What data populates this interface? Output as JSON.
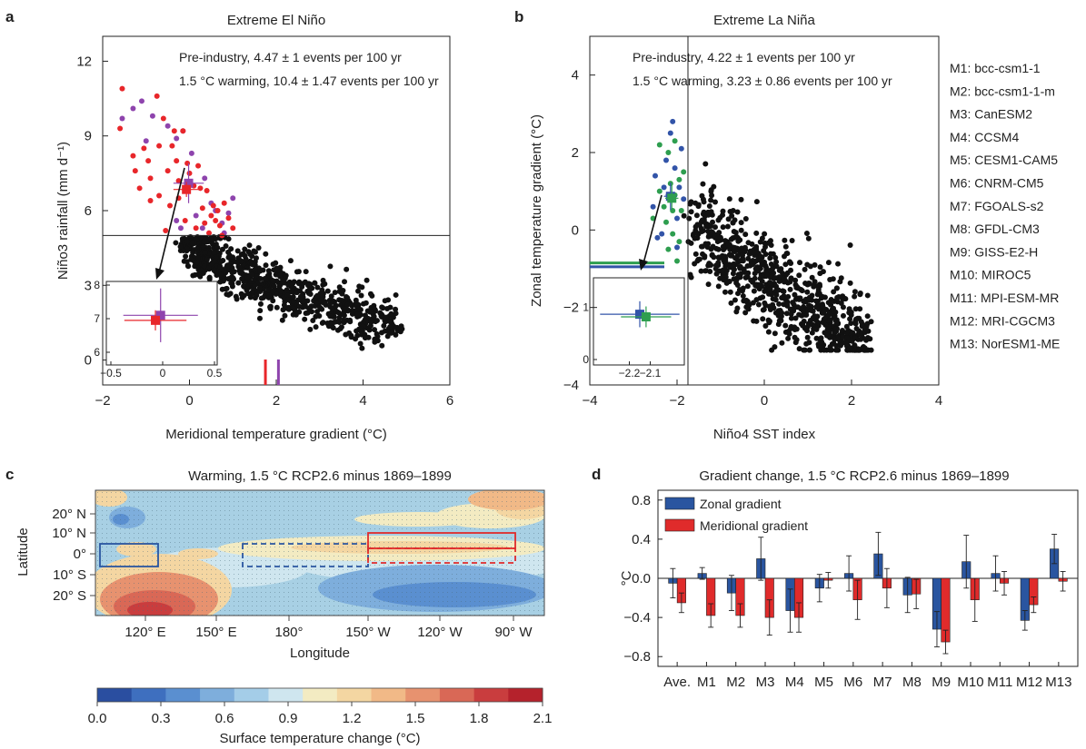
{
  "colors": {
    "preindustry_a": "#8e44ad",
    "warming_a": "#e8262a",
    "preindustry_b": "#2e9e4f",
    "warming_b": "#3254a8",
    "black": "#111111",
    "zonal_bar": "#2a55a0",
    "meridional_bar": "#e02b2b"
  },
  "panel_a": {
    "label": "a",
    "chart_data": {
      "type": "scatter",
      "title": "Extreme El Niño",
      "xlabel": "Meridional temperature gradient (°C)",
      "ylabel": "Niño3 rainfall (mm d⁻¹)",
      "xlim": [
        -2,
        6
      ],
      "ylim": [
        -1,
        13
      ],
      "xticks": [
        "−2",
        "0",
        "2",
        "4",
        "6"
      ],
      "yticks": [
        "0",
        "3",
        "6",
        "9",
        "12"
      ],
      "threshold_y": 5,
      "annotations": [
        {
          "text": "Pre-industry, 4.47 ± 1 events per 100 yr",
          "color": "#8e44ad"
        },
        {
          "text": "1.5 °C warming, 10.4 ± 1.47 events per 100 yr",
          "color": "#e8262a"
        }
      ],
      "markers_x": [
        {
          "x": 1.75,
          "color": "#e8262a"
        },
        {
          "x": 2.05,
          "color": "#8e44ad"
        }
      ],
      "extreme_preindustry": [
        [
          -1.55,
          9.7
        ],
        [
          -1.3,
          10.1
        ],
        [
          -1.1,
          10.4
        ],
        [
          -1.0,
          8.8
        ],
        [
          -0.85,
          9.8
        ],
        [
          -0.5,
          9.4
        ],
        [
          -0.3,
          8.9
        ],
        [
          -0.15,
          9.2
        ],
        [
          0.05,
          8.3
        ],
        [
          0.35,
          7.3
        ],
        [
          0.5,
          6.3
        ],
        [
          0.6,
          6.0
        ],
        [
          0.75,
          5.5
        ],
        [
          0.8,
          5.1
        ],
        [
          0.9,
          5.9
        ],
        [
          -0.3,
          5.6
        ],
        [
          0.3,
          5.3
        ],
        [
          1.0,
          6.5
        ],
        [
          0.15,
          5.8
        ],
        [
          -0.2,
          5.3
        ]
      ],
      "extreme_warming": [
        [
          -1.55,
          10.9
        ],
        [
          -1.6,
          9.3
        ],
        [
          -1.3,
          8.2
        ],
        [
          -1.25,
          7.6
        ],
        [
          -1.05,
          8.5
        ],
        [
          -0.95,
          8.0
        ],
        [
          -0.9,
          7.3
        ],
        [
          -0.75,
          10.6
        ],
        [
          -0.7,
          8.6
        ],
        [
          -0.6,
          9.7
        ],
        [
          -0.5,
          7.6
        ],
        [
          -0.4,
          8.6
        ],
        [
          -0.35,
          9.2
        ],
        [
          -0.3,
          8.0
        ],
        [
          -0.25,
          7.2
        ],
        [
          -0.15,
          9.2
        ],
        [
          -0.05,
          7.9
        ],
        [
          0.0,
          7.5
        ],
        [
          0.1,
          7.0
        ],
        [
          0.2,
          7.8
        ],
        [
          0.25,
          6.9
        ],
        [
          0.3,
          6.1
        ],
        [
          0.4,
          6.8
        ],
        [
          0.5,
          5.8
        ],
        [
          0.55,
          6.2
        ],
        [
          0.6,
          5.6
        ],
        [
          0.65,
          6.0
        ],
        [
          0.7,
          5.4
        ],
        [
          0.8,
          6.3
        ],
        [
          0.9,
          5.7
        ],
        [
          0.35,
          5.5
        ],
        [
          0.15,
          5.3
        ],
        [
          -0.1,
          5.6
        ],
        [
          -0.25,
          6.5
        ],
        [
          -0.45,
          6.2
        ],
        [
          -0.7,
          6.6
        ],
        [
          -0.9,
          6.4
        ],
        [
          -1.15,
          6.9
        ],
        [
          -0.55,
          5.2
        ],
        [
          0.45,
          5.1
        ],
        [
          1.0,
          5.3
        ],
        [
          0.75,
          5.0
        ]
      ],
      "inset": {
        "xlim": [
          -0.5,
          0.5
        ],
        "ylim": [
          6,
          8
        ],
        "xticks": [
          "−0.5",
          "0",
          "0.5"
        ],
        "yticks": [
          "6",
          "7",
          "8"
        ],
        "series": [
          {
            "name": "Pre-industry",
            "x": -0.02,
            "y": 7.1,
            "xerr": 0.36,
            "yerr": 0.8,
            "color": "#8e44ad"
          },
          {
            "name": "1.5 °C warming",
            "x": -0.07,
            "y": 6.95,
            "xerr": 0.3,
            "yerr": 0.3,
            "color": "#e8262a"
          }
        ]
      }
    }
  },
  "panel_b": {
    "label": "b",
    "chart_data": {
      "type": "scatter",
      "title": "Extreme La Niña",
      "xlabel": "Niño4 SST index",
      "ylabel": "Zonal temperature gradient (°C)",
      "xlim": [
        -4,
        4
      ],
      "ylim": [
        -4,
        5
      ],
      "xticks": [
        "−4",
        "−2",
        "0",
        "2",
        "4"
      ],
      "yticks": [
        "−4",
        "−2",
        "0",
        "2",
        "4"
      ],
      "threshold_x": -1.75,
      "annotations": [
        {
          "text": "Pre-industry, 4.22 ± 1 events per 100 yr",
          "color": "#2e9e4f"
        },
        {
          "text": "1.5 °C warming, 3.23 ± 0.86 events per 100 yr",
          "color": "#3254a8"
        }
      ],
      "markers_y": [
        {
          "y": -0.85,
          "color": "#2e9e4f"
        },
        {
          "y": -0.95,
          "color": "#3254a8"
        }
      ],
      "extreme_preindustry": [
        [
          -2.55,
          0.3
        ],
        [
          -2.4,
          2.2
        ],
        [
          -2.2,
          2.0
        ],
        [
          -2.15,
          1.2
        ],
        [
          -2.05,
          2.3
        ],
        [
          -1.95,
          1.3
        ],
        [
          -2.3,
          0.6
        ],
        [
          -2.1,
          -0.1
        ],
        [
          -1.95,
          -0.3
        ],
        [
          -2.2,
          -0.5
        ],
        [
          -2.05,
          0.9
        ],
        [
          -1.9,
          0.5
        ],
        [
          -2.4,
          1.0
        ],
        [
          -2.25,
          0.2
        ],
        [
          -2.0,
          -0.8
        ],
        [
          -1.85,
          1.5
        ],
        [
          -2.1,
          0.5
        ]
      ],
      "extreme_warming": [
        [
          -2.55,
          0.6
        ],
        [
          -2.5,
          1.4
        ],
        [
          -2.35,
          -0.1
        ],
        [
          -2.25,
          1.8
        ],
        [
          -2.2,
          0.9
        ],
        [
          -2.15,
          2.5
        ],
        [
          -2.1,
          2.8
        ],
        [
          -2.05,
          1.6
        ],
        [
          -2.0,
          0.3
        ],
        [
          -1.95,
          1.1
        ],
        [
          -1.9,
          2.1
        ],
        [
          -2.3,
          1.1
        ],
        [
          -2.45,
          -0.2
        ],
        [
          -2.0,
          -0.45
        ],
        [
          -1.85,
          0.8
        ]
      ],
      "legend": [
        "M1: bcc-csm1-1",
        "M2: bcc-csm1-1-m",
        "M3: CanESM2",
        "M4: CCSM4",
        "M5: CESM1-CAM5",
        "M6: CNRM-CM5",
        "M7: FGOALS-s2",
        "M8: GFDL-CM3",
        "M9: GISS-E2-H",
        "M10: MIROC5",
        "M11: MPI-ESM-MR",
        "M12: MRI-CGCM3",
        "M13: NorESM1-ME"
      ],
      "inset": {
        "xlim": [
          -2.35,
          -1.95
        ],
        "ylim": [
          0,
          1.5
        ],
        "xticks": [
          "−2.2",
          "−2.1"
        ],
        "yticks": [
          "0",
          "1"
        ],
        "series": [
          {
            "name": "1.5 °C warming",
            "x": -2.15,
            "y": 0.87,
            "xerr": 0.19,
            "yerr": 0.25,
            "color": "#3254a8"
          },
          {
            "name": "Pre-industry",
            "x": -2.12,
            "y": 0.82,
            "xerr": 0.12,
            "yerr": 0.2,
            "color": "#2e9e4f"
          }
        ]
      }
    }
  },
  "panel_c": {
    "label": "c",
    "chart_data": {
      "type": "heatmap",
      "title": "Warming, 1.5 °C RCP2.6 minus 1869–1899",
      "xlabel": "Longitude",
      "ylabel": "Latitude",
      "xticks": [
        "120° E",
        "150° E",
        "180°",
        "150° W",
        "120° W",
        "90° W"
      ],
      "yticks": [
        "20° N",
        "10° N",
        "0°",
        "10° S",
        "20° S"
      ],
      "colorbar_label": "Surface temperature change (°C)",
      "colorbar_ticks": [
        "0.0",
        "0.3",
        "0.6",
        "0.9",
        "1.2",
        "1.5",
        "1.8",
        "2.1"
      ],
      "colorbar_range": [
        0,
        2.1
      ],
      "colorbar_colors": [
        "#2a4ea0",
        "#3e6fbf",
        "#5a8fd0",
        "#7eaedc",
        "#a4cde8",
        "#cfe6ef",
        "#f3ebc2",
        "#f4d6a2",
        "#f1b987",
        "#e7926f",
        "#d96856",
        "#c93d3e",
        "#b5222c"
      ],
      "background_color": "#a8d0e4"
    }
  },
  "panel_d": {
    "label": "d",
    "chart_data": {
      "type": "bar",
      "title": "Gradient change, 1.5 °C RCP2.6 minus 1869–1899",
      "ylabel": "°C",
      "ylim": [
        -0.9,
        0.9
      ],
      "yticks": [
        "−0.8",
        "−0.4",
        "0.0",
        "0.4",
        "0.8"
      ],
      "categories": [
        "Ave.",
        "M1",
        "M2",
        "M3",
        "M4",
        "M5",
        "M6",
        "M7",
        "M8",
        "M9",
        "M10",
        "M11",
        "M12",
        "M13"
      ],
      "series": [
        {
          "name": "Zonal gradient",
          "color": "#2a55a0",
          "values": [
            -0.05,
            0.05,
            -0.15,
            0.2,
            -0.33,
            -0.1,
            0.05,
            0.25,
            -0.17,
            -0.52,
            0.17,
            0.05,
            -0.43,
            0.3
          ],
          "errors": [
            0.15,
            0.06,
            0.18,
            0.22,
            0.22,
            0.14,
            0.18,
            0.22,
            0.18,
            0.18,
            0.27,
            0.18,
            0.1,
            0.15
          ]
        },
        {
          "name": "Meridional gradient",
          "color": "#e02b2b",
          "values": [
            -0.25,
            -0.38,
            -0.38,
            -0.4,
            -0.4,
            -0.02,
            -0.22,
            -0.1,
            -0.16,
            -0.65,
            -0.22,
            -0.05,
            -0.27,
            -0.03
          ],
          "errors": [
            0.1,
            0.12,
            0.12,
            0.18,
            0.15,
            0.08,
            0.2,
            0.2,
            0.15,
            0.12,
            0.22,
            0.12,
            0.08,
            0.1
          ]
        }
      ]
    }
  }
}
